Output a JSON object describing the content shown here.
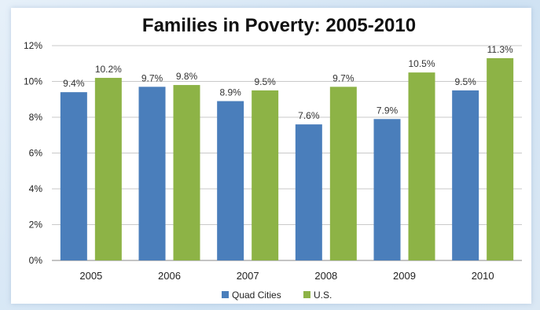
{
  "chart_data": {
    "type": "bar",
    "title": "Families in Poverty: 2005-2010",
    "categories": [
      "2005",
      "2006",
      "2007",
      "2008",
      "2009",
      "2010"
    ],
    "series": [
      {
        "name": "Quad Cities",
        "color": "#4a7ebb",
        "values": [
          9.4,
          9.7,
          8.9,
          7.6,
          7.9,
          9.5
        ],
        "labels": [
          "9.4%",
          "9.7%",
          "8.9%",
          "7.6%",
          "7.9%",
          "9.5%"
        ]
      },
      {
        "name": "U.S.",
        "color": "#8db346",
        "values": [
          10.2,
          9.8,
          9.5,
          9.7,
          10.5,
          11.3
        ],
        "labels": [
          "10.2%",
          "9.8%",
          "9.5%",
          "9.7%",
          "10.5%",
          "11.3%"
        ]
      }
    ],
    "ylim": [
      0,
      12
    ],
    "yticks": [
      0,
      2,
      4,
      6,
      8,
      10,
      12
    ],
    "ytick_labels": [
      "0%",
      "2%",
      "4%",
      "6%",
      "8%",
      "10%",
      "12%"
    ],
    "xlabel": "",
    "ylabel": "",
    "grid": true,
    "legend_position": "bottom"
  }
}
